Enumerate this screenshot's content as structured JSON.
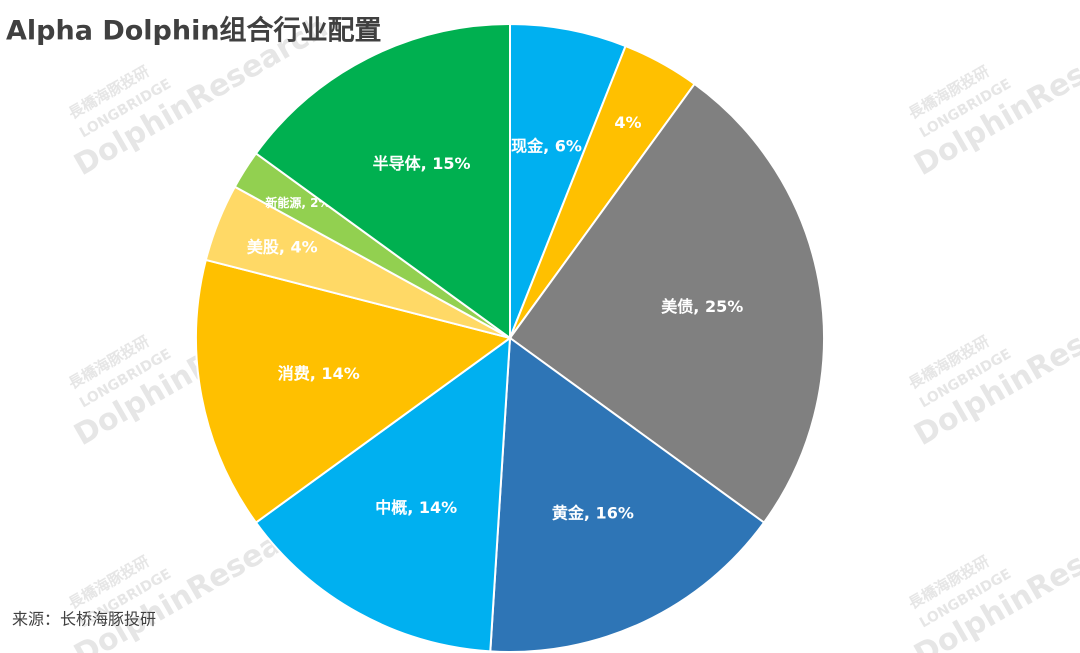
{
  "chart_data": {
    "type": "pie",
    "title": "Alpha Dolphin组合行业配置",
    "values": [
      6,
      4,
      25,
      16,
      14,
      14,
      4,
      2,
      15
    ],
    "value_labels": [
      "现金, 6%",
      "4%",
      "美债, 25%",
      "黄金, 16%",
      "中概, 14%",
      "消费, 14%",
      "美股, 4%",
      "新能源, 2%",
      "半导体, 15%"
    ],
    "colors": [
      "#00b0f0",
      "#ffc000",
      "#808080",
      "#2e75b6",
      "#00b0f0",
      "#ffc000",
      "#ffd966",
      "#92d050",
      "#00b050"
    ],
    "source": "来源：长桥海豚投研",
    "watermark": [
      "長橋海豚投研",
      "LONGBRIDGE",
      "DolphinResearch"
    ]
  }
}
